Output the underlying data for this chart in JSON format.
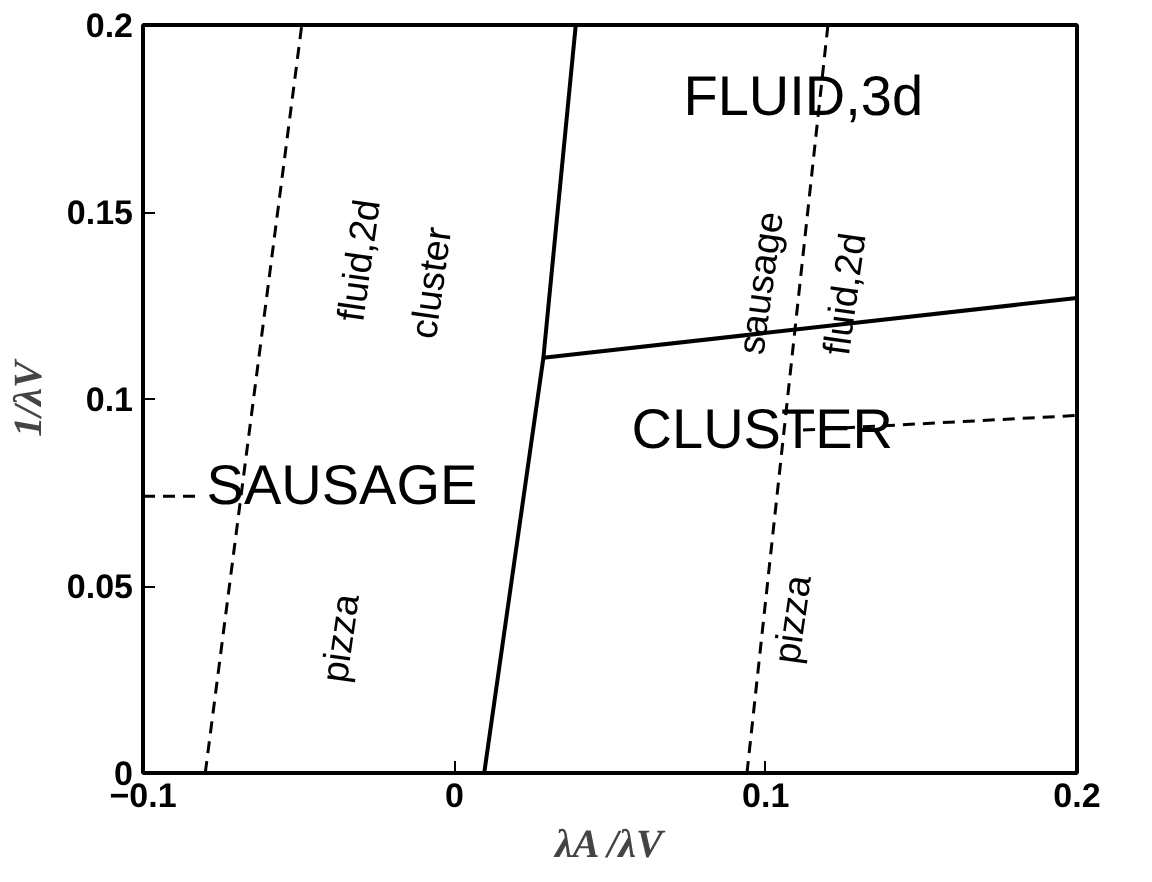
{
  "chart_data": {
    "type": "line",
    "xlabel": "λA /λV",
    "ylabel": "1/λV",
    "xlim": [
      -0.1,
      0.2
    ],
    "ylim": [
      0,
      0.2
    ],
    "xticks": [
      {
        "value": -0.1,
        "label": "−0.1"
      },
      0,
      0.1,
      0.2
    ],
    "yticks": [
      0,
      0.05,
      0.1,
      0.15,
      0.2
    ],
    "grid": false,
    "marker": "none",
    "series": [
      {
        "color": "#000000",
        "line_style": "solid",
        "x": [
          0.0096,
          0.0286,
          0.039
        ],
        "values": [
          0,
          0.111,
          0.2
        ]
      },
      {
        "color": "#000000",
        "line_style": "solid",
        "x": [
          0.0286,
          0.2
        ],
        "values": [
          0.111,
          0.127
        ]
      },
      {
        "color": "#000000",
        "line_style": "dashed",
        "x": [
          -0.08,
          -0.049
        ],
        "values": [
          0,
          0.2
        ]
      },
      {
        "color": "#000000",
        "line_style": "dashed",
        "x": [
          0.094,
          0.12
        ],
        "values": [
          0,
          0.2
        ]
      },
      {
        "color": "#000000",
        "line_style": "dashed",
        "x": [
          -0.1,
          -0.082
        ],
        "values": [
          0.074,
          0.074
        ]
      },
      {
        "color": "#000000",
        "line_style": "dashed",
        "x": [
          0.112,
          0.2
        ],
        "values": [
          0.0917,
          0.0956
        ]
      }
    ],
    "annotations": [
      "FLUID,3d",
      "CLUSTER",
      "SAUSAGE",
      "fluid,2d",
      "cluster",
      "pizza",
      "sausage",
      "fluid,2d",
      "pizza"
    ]
  }
}
